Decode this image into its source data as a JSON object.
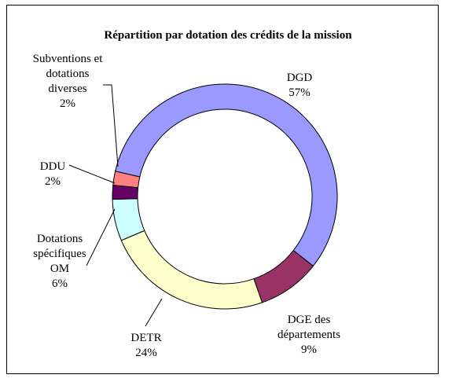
{
  "chart_data": {
    "type": "pie",
    "subtype": "doughnut",
    "title": "Répartition par dotation des crédits de la mission",
    "legend": "none",
    "slices": [
      {
        "name": "DGD",
        "label": [
          "DGD"
        ],
        "value": 57,
        "value_label": "57%",
        "color": "#9999ff"
      },
      {
        "name": "DGE des départements",
        "label": [
          "DGE des",
          "départements"
        ],
        "value": 9,
        "value_label": "9%",
        "color": "#993366"
      },
      {
        "name": "DETR",
        "label": [
          "DETR"
        ],
        "value": 24,
        "value_label": "24%",
        "color": "#ffffcc"
      },
      {
        "name": "Dotations spécifiques OM",
        "label": [
          "Dotations",
          "spécifiques",
          "OM"
        ],
        "value": 6,
        "value_label": "6%",
        "color": "#ccffff"
      },
      {
        "name": "DDU",
        "label": [
          "DDU"
        ],
        "value": 2,
        "value_label": "2%",
        "color": "#660066"
      },
      {
        "name": "Subventions et dotations diverses",
        "label": [
          "Subventions et",
          "dotations",
          "diverses"
        ],
        "value": 2,
        "value_label": "2%",
        "color": "#ff8080"
      }
    ]
  }
}
